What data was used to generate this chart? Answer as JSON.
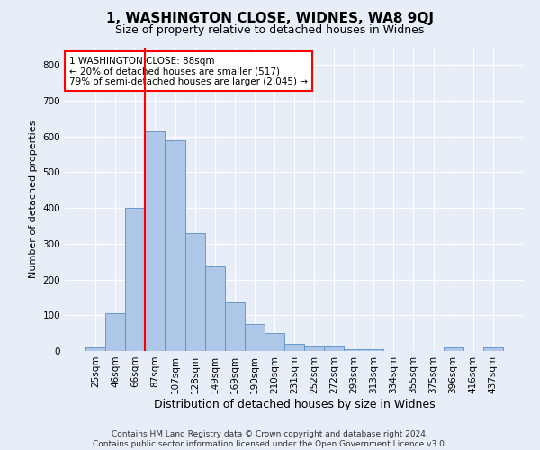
{
  "title": "1, WASHINGTON CLOSE, WIDNES, WA8 9QJ",
  "subtitle": "Size of property relative to detached houses in Widnes",
  "xlabel": "Distribution of detached houses by size in Widnes",
  "ylabel": "Number of detached properties",
  "bar_labels": [
    "25sqm",
    "46sqm",
    "66sqm",
    "87sqm",
    "107sqm",
    "128sqm",
    "149sqm",
    "169sqm",
    "190sqm",
    "210sqm",
    "231sqm",
    "252sqm",
    "272sqm",
    "293sqm",
    "313sqm",
    "334sqm",
    "355sqm",
    "375sqm",
    "396sqm",
    "416sqm",
    "437sqm"
  ],
  "bar_values": [
    10,
    105,
    400,
    615,
    590,
    330,
    238,
    135,
    76,
    50,
    20,
    14,
    14,
    5,
    5,
    0,
    0,
    0,
    10,
    0,
    10
  ],
  "bar_color": "#aec6e8",
  "bar_edge_color": "#5a8fc2",
  "annotation_text": "1 WASHINGTON CLOSE: 88sqm\n← 20% of detached houses are smaller (517)\n79% of semi-detached houses are larger (2,045) →",
  "annotation_box_color": "white",
  "annotation_box_edge_color": "red",
  "vline_color": "red",
  "vline_x": 2.5,
  "ylim": [
    0,
    850
  ],
  "yticks": [
    0,
    100,
    200,
    300,
    400,
    500,
    600,
    700,
    800
  ],
  "footer": "Contains HM Land Registry data © Crown copyright and database right 2024.\nContains public sector information licensed under the Open Government Licence v3.0.",
  "background_color": "#e8eef8",
  "plot_bg_color": "#e8eef8",
  "grid_color": "white",
  "title_fontsize": 11,
  "subtitle_fontsize": 9,
  "ylabel_fontsize": 8,
  "xlabel_fontsize": 9,
  "tick_fontsize": 7.5,
  "annotation_fontsize": 7.5,
  "footer_fontsize": 6.5
}
